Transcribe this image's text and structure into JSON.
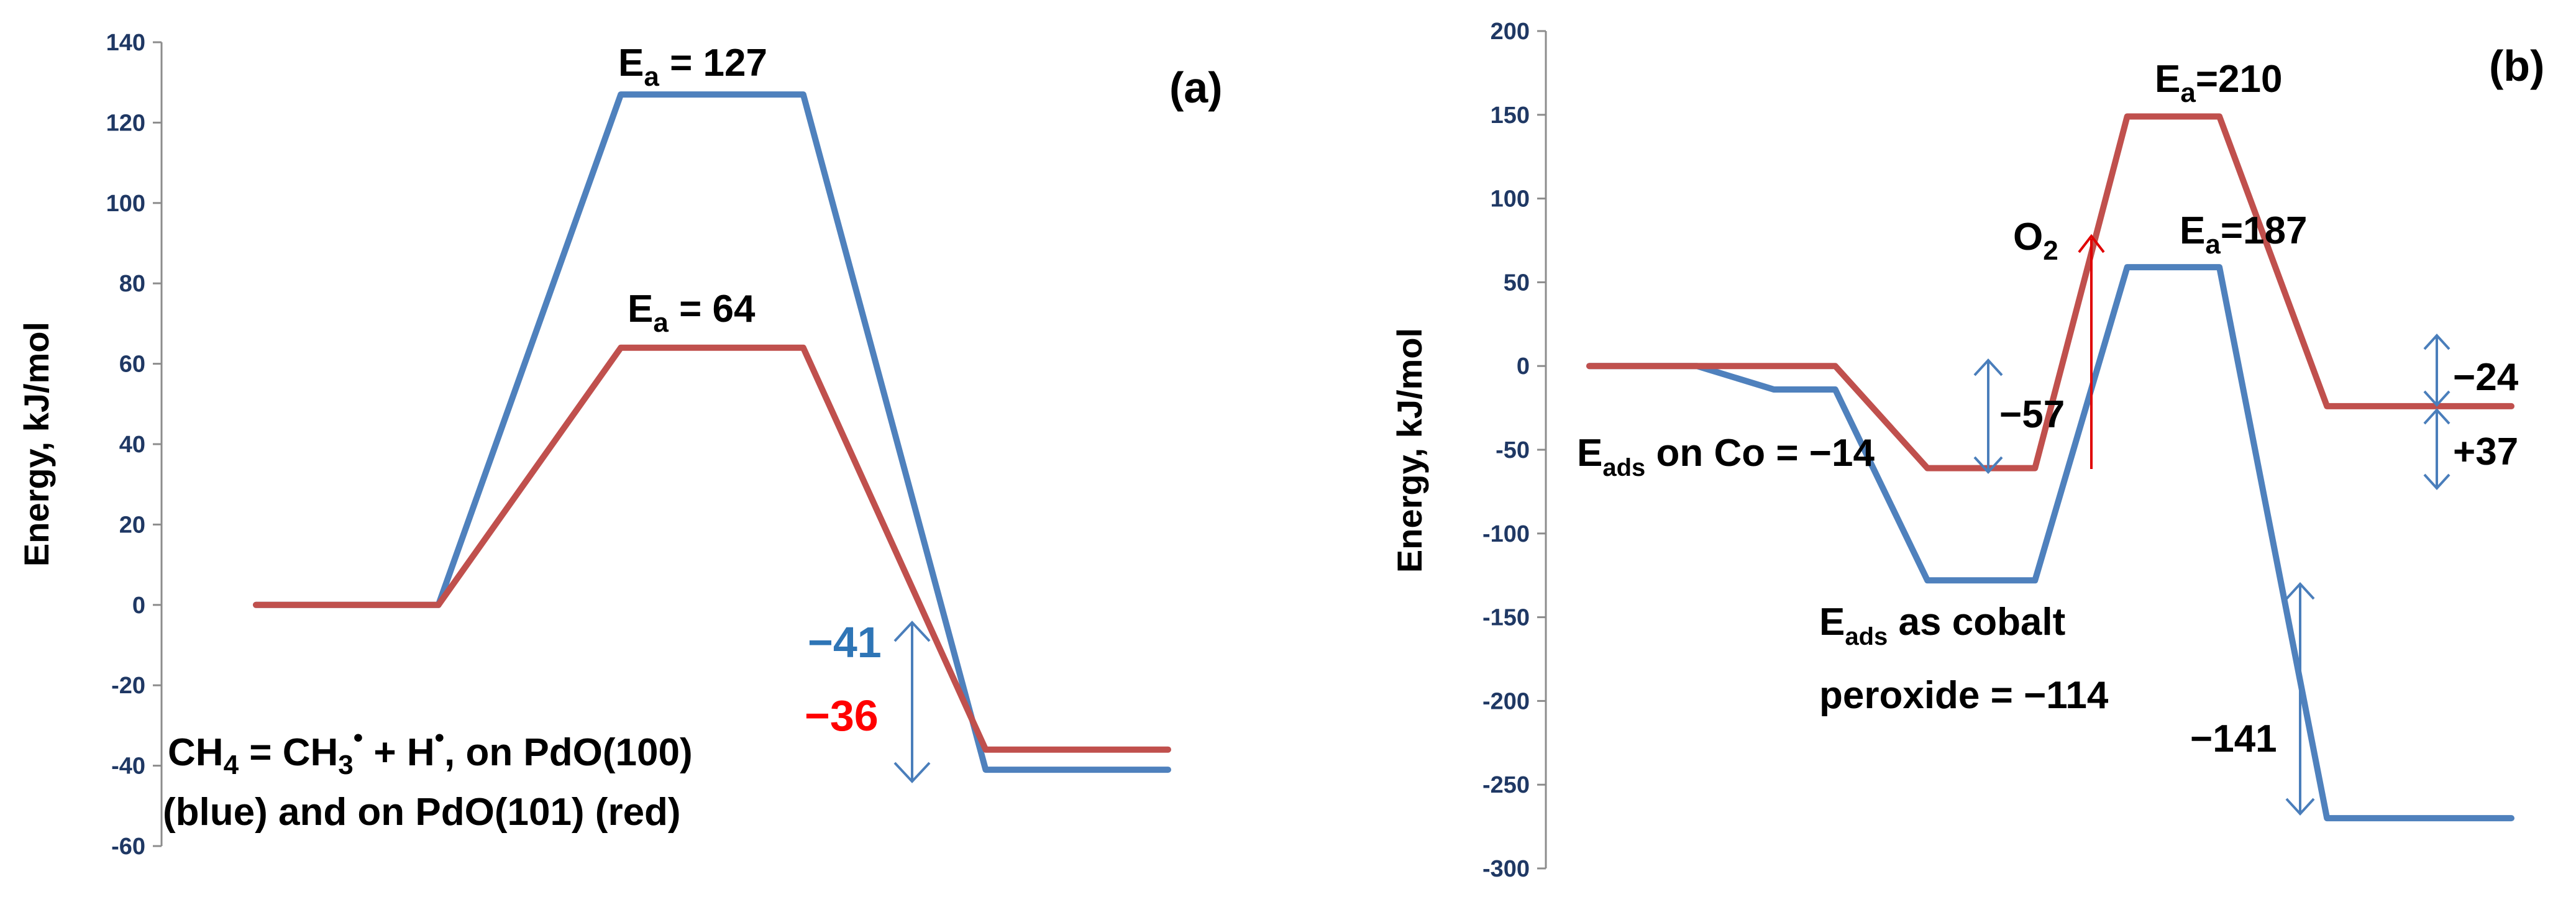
{
  "chart_data": [
    {
      "type": "line",
      "panel_label": "(a)",
      "ylabel": "Energy, kJ/mol",
      "ylim": [
        -60,
        140
      ],
      "yticks": [
        -60,
        -40,
        -20,
        0,
        20,
        40,
        60,
        80,
        100,
        120,
        140
      ],
      "series": [
        {
          "color": "#4f81bd",
          "x": [
            0.0,
            0.7,
            1.4,
            2.1,
            2.8,
            3.5
          ],
          "y": [
            0,
            0,
            127,
            127,
            -41,
            -41
          ]
        },
        {
          "color": "#c0504d",
          "x": [
            0.0,
            0.7,
            1.4,
            2.1,
            2.8,
            3.5
          ],
          "y": [
            0,
            0,
            64,
            64,
            -36,
            -36
          ]
        }
      ],
      "annotations": {
        "ea_blue_main": "E",
        "ea_blue_sub": "a",
        "ea_blue_val": " = 127",
        "ea_red_main": "E",
        "ea_red_sub": "a",
        "ea_red_val": " = 64",
        "dE_blue": "−41",
        "dE_blue_color": "#2e75b6",
        "dE_red": "−36",
        "dE_red_color": "#ff0000",
        "caption1_a": "CH",
        "caption1_sub1": "4",
        "caption1_b": " = CH",
        "caption1_sub2": "3",
        "caption1_sup1": "•",
        "caption1_c": " + H",
        "caption1_sup2": "•",
        "caption1_d": ", on PdO(100)",
        "caption2": "(blue) and on PdO(101) (red)"
      }
    },
    {
      "type": "line",
      "panel_label": "(b)",
      "ylabel": "Energy, kJ/mol",
      "ylim": [
        -300,
        200
      ],
      "yticks": [
        -300,
        -250,
        -200,
        -150,
        -100,
        -50,
        0,
        50,
        100,
        150,
        200
      ],
      "series": [
        {
          "color": "#4f81bd",
          "x": [
            0.0,
            0.35,
            0.6,
            0.8,
            1.1,
            1.45,
            1.75,
            2.05,
            2.4,
            2.75,
            3.0
          ],
          "y": [
            0,
            0,
            -14,
            -14,
            -128,
            -128,
            59,
            59,
            -270,
            -270,
            -270
          ]
        },
        {
          "color": "#c0504d",
          "x": [
            0.0,
            0.35,
            0.6,
            0.8,
            1.1,
            1.45,
            1.75,
            2.05,
            2.4,
            2.75,
            3.0
          ],
          "y": [
            0,
            0,
            0,
            0,
            -61,
            -61,
            149,
            149,
            -24,
            -24,
            -24
          ]
        }
      ],
      "annotations": {
        "ea_red_main": "E",
        "ea_red_sub": "a",
        "ea_red_val": "=210",
        "ea_blue_main": "E",
        "ea_blue_sub": "a",
        "ea_blue_val": "=187",
        "o2_main": "O",
        "o2_sub": "2",
        "m57": "−57",
        "eads_co_main": "E",
        "eads_co_sub": "ads",
        "eads_co_val": " on Co = −14",
        "eads_perox_main": "E",
        "eads_perox_sub": "ads",
        "eads_perox_val": " as cobalt",
        "eads_perox_line2": "peroxide = −114",
        "m141": "−141",
        "m24": "−24",
        "p37": "+37"
      }
    }
  ]
}
